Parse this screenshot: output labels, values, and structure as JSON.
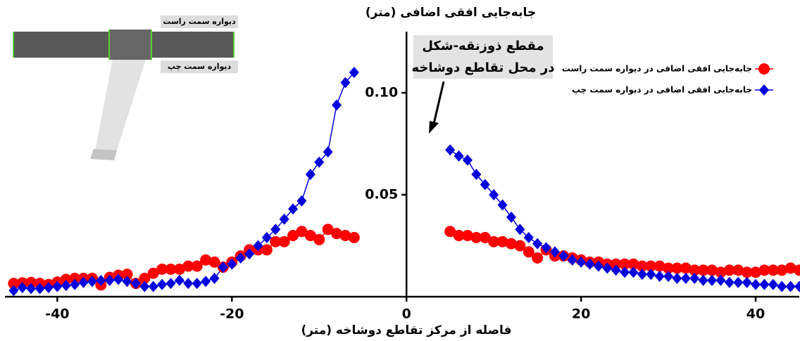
{
  "chart_data": {
    "type": "line",
    "title": "جابه‌جایی افقی اضافی (متر)",
    "x_label": "فاصله از مرکز تقاطع دوشاخه (متر)",
    "annotation": [
      "مقطع ذوزنقه-شکل",
      "در محل تقاطع دوشاخه"
    ],
    "inset_labels": [
      "دیواره سمت راست",
      "دیواره سمت چپ"
    ],
    "x": [
      -45,
      -44,
      -43,
      -42,
      -41,
      -40,
      -39,
      -38,
      -37,
      -36,
      -35,
      -34,
      -33,
      -32,
      -31,
      -30,
      -29,
      -28,
      -27,
      -26,
      -25,
      -24,
      -23,
      -22,
      -21,
      -20,
      -19,
      -18,
      -17,
      -16,
      -15,
      -14,
      -13,
      -12,
      -11,
      -10,
      -9,
      -8,
      -7,
      -6,
      -5,
      -4,
      -3,
      -2,
      -1,
      0,
      1,
      2,
      3,
      4,
      5,
      6,
      7,
      8,
      9,
      10,
      11,
      12,
      13,
      14,
      15,
      16,
      17,
      18,
      19,
      20,
      21,
      22,
      23,
      24,
      25,
      26,
      27,
      28,
      29,
      30,
      31,
      32,
      33,
      34,
      35,
      36,
      37,
      38,
      39,
      40,
      41,
      42,
      43,
      44,
      45
    ],
    "series": [
      {
        "name": "جابه‌جایی افقی اضافی در دیواره سمت راست",
        "color": "#ff0000",
        "marker": "circle",
        "values": [
          0.0065,
          0.0068,
          0.007,
          0.0065,
          0.006,
          0.0072,
          0.0085,
          0.009,
          0.009,
          0.009,
          0.0058,
          0.0095,
          0.0105,
          0.011,
          0.0065,
          0.009,
          0.0115,
          0.0135,
          0.0135,
          0.0135,
          0.015,
          0.015,
          0.018,
          0.017,
          0.0145,
          0.017,
          0.02,
          0.023,
          0.023,
          0.023,
          0.027,
          0.027,
          0.03,
          0.032,
          0.03,
          0.028,
          0.033,
          0.031,
          0.03,
          0.029,
          null,
          null,
          null,
          null,
          null,
          null,
          null,
          null,
          null,
          null,
          0.032,
          0.03,
          0.03,
          0.029,
          0.029,
          0.027,
          0.027,
          0.026,
          0.025,
          0.022,
          0.019,
          0.023,
          0.02,
          0.02,
          0.019,
          0.018,
          0.017,
          0.017,
          0.016,
          0.016,
          0.016,
          0.016,
          0.015,
          0.015,
          0.015,
          0.014,
          0.014,
          0.014,
          0.013,
          0.013,
          0.013,
          0.012,
          0.013,
          0.013,
          0.012,
          0.012,
          0.013,
          0.013,
          0.013,
          0.014,
          0.013
        ]
      },
      {
        "name": "جابه‌جایی افقی اضافی در دیواره سمت چپ",
        "color": "#0000dd",
        "marker": "diamond",
        "values": [
          0.003,
          0.0045,
          0.004,
          0.004,
          0.0045,
          0.005,
          0.0055,
          0.006,
          0.007,
          0.0075,
          0.008,
          0.008,
          0.0085,
          0.0075,
          0.0065,
          0.005,
          0.005,
          0.006,
          0.0065,
          0.008,
          0.0065,
          0.0065,
          0.0075,
          0.009,
          0.0145,
          0.016,
          0.019,
          0.021,
          0.025,
          0.029,
          0.033,
          0.038,
          0.043,
          0.047,
          0.06,
          0.066,
          0.071,
          0.094,
          0.105,
          0.11,
          null,
          null,
          null,
          null,
          null,
          null,
          null,
          null,
          null,
          null,
          0.072,
          0.069,
          0.067,
          0.06,
          0.055,
          0.05,
          0.045,
          0.039,
          0.033,
          0.029,
          0.026,
          0.024,
          0.022,
          0.02,
          0.018,
          0.017,
          0.016,
          0.015,
          0.014,
          0.013,
          0.012,
          0.012,
          0.011,
          0.011,
          0.01,
          0.01,
          0.009,
          0.009,
          0.009,
          0.008,
          0.008,
          0.008,
          0.007,
          0.007,
          0.007,
          0.006,
          0.006,
          0.006,
          0.005,
          0.005,
          0.005
        ]
      }
    ],
    "xlim": [
      -46,
      45
    ],
    "xticks": [
      -40,
      -20,
      0,
      20,
      40
    ],
    "ylim": [
      0,
      0.13
    ],
    "yticks": [
      {
        "value": 0.05,
        "label": "0.05"
      },
      {
        "value": 0.1,
        "label": "0.10"
      }
    ],
    "grid": false,
    "legend": "upper right"
  }
}
